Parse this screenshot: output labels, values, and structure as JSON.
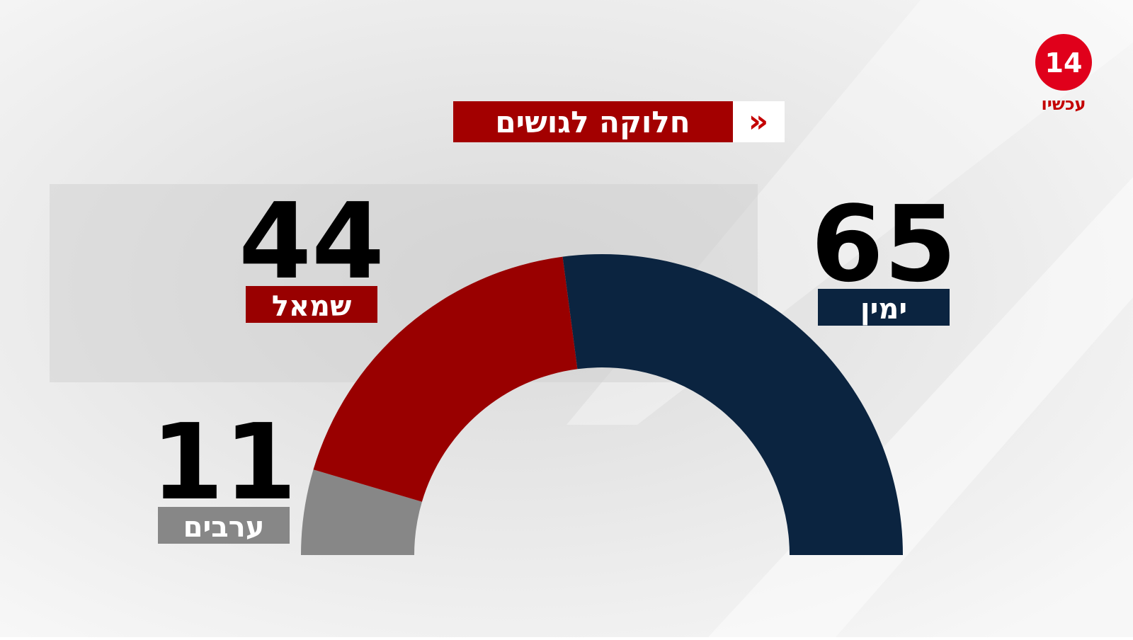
{
  "chart_data": {
    "type": "half-donut",
    "title": "חלוקה לגושים",
    "categories": [
      "ערבים",
      "שמאל",
      "ימין"
    ],
    "values": [
      11,
      44,
      65
    ],
    "colors": [
      "#878787",
      "#990000",
      "#0b2440"
    ]
  },
  "logo": {
    "number": "14",
    "text": "עכשיו"
  }
}
